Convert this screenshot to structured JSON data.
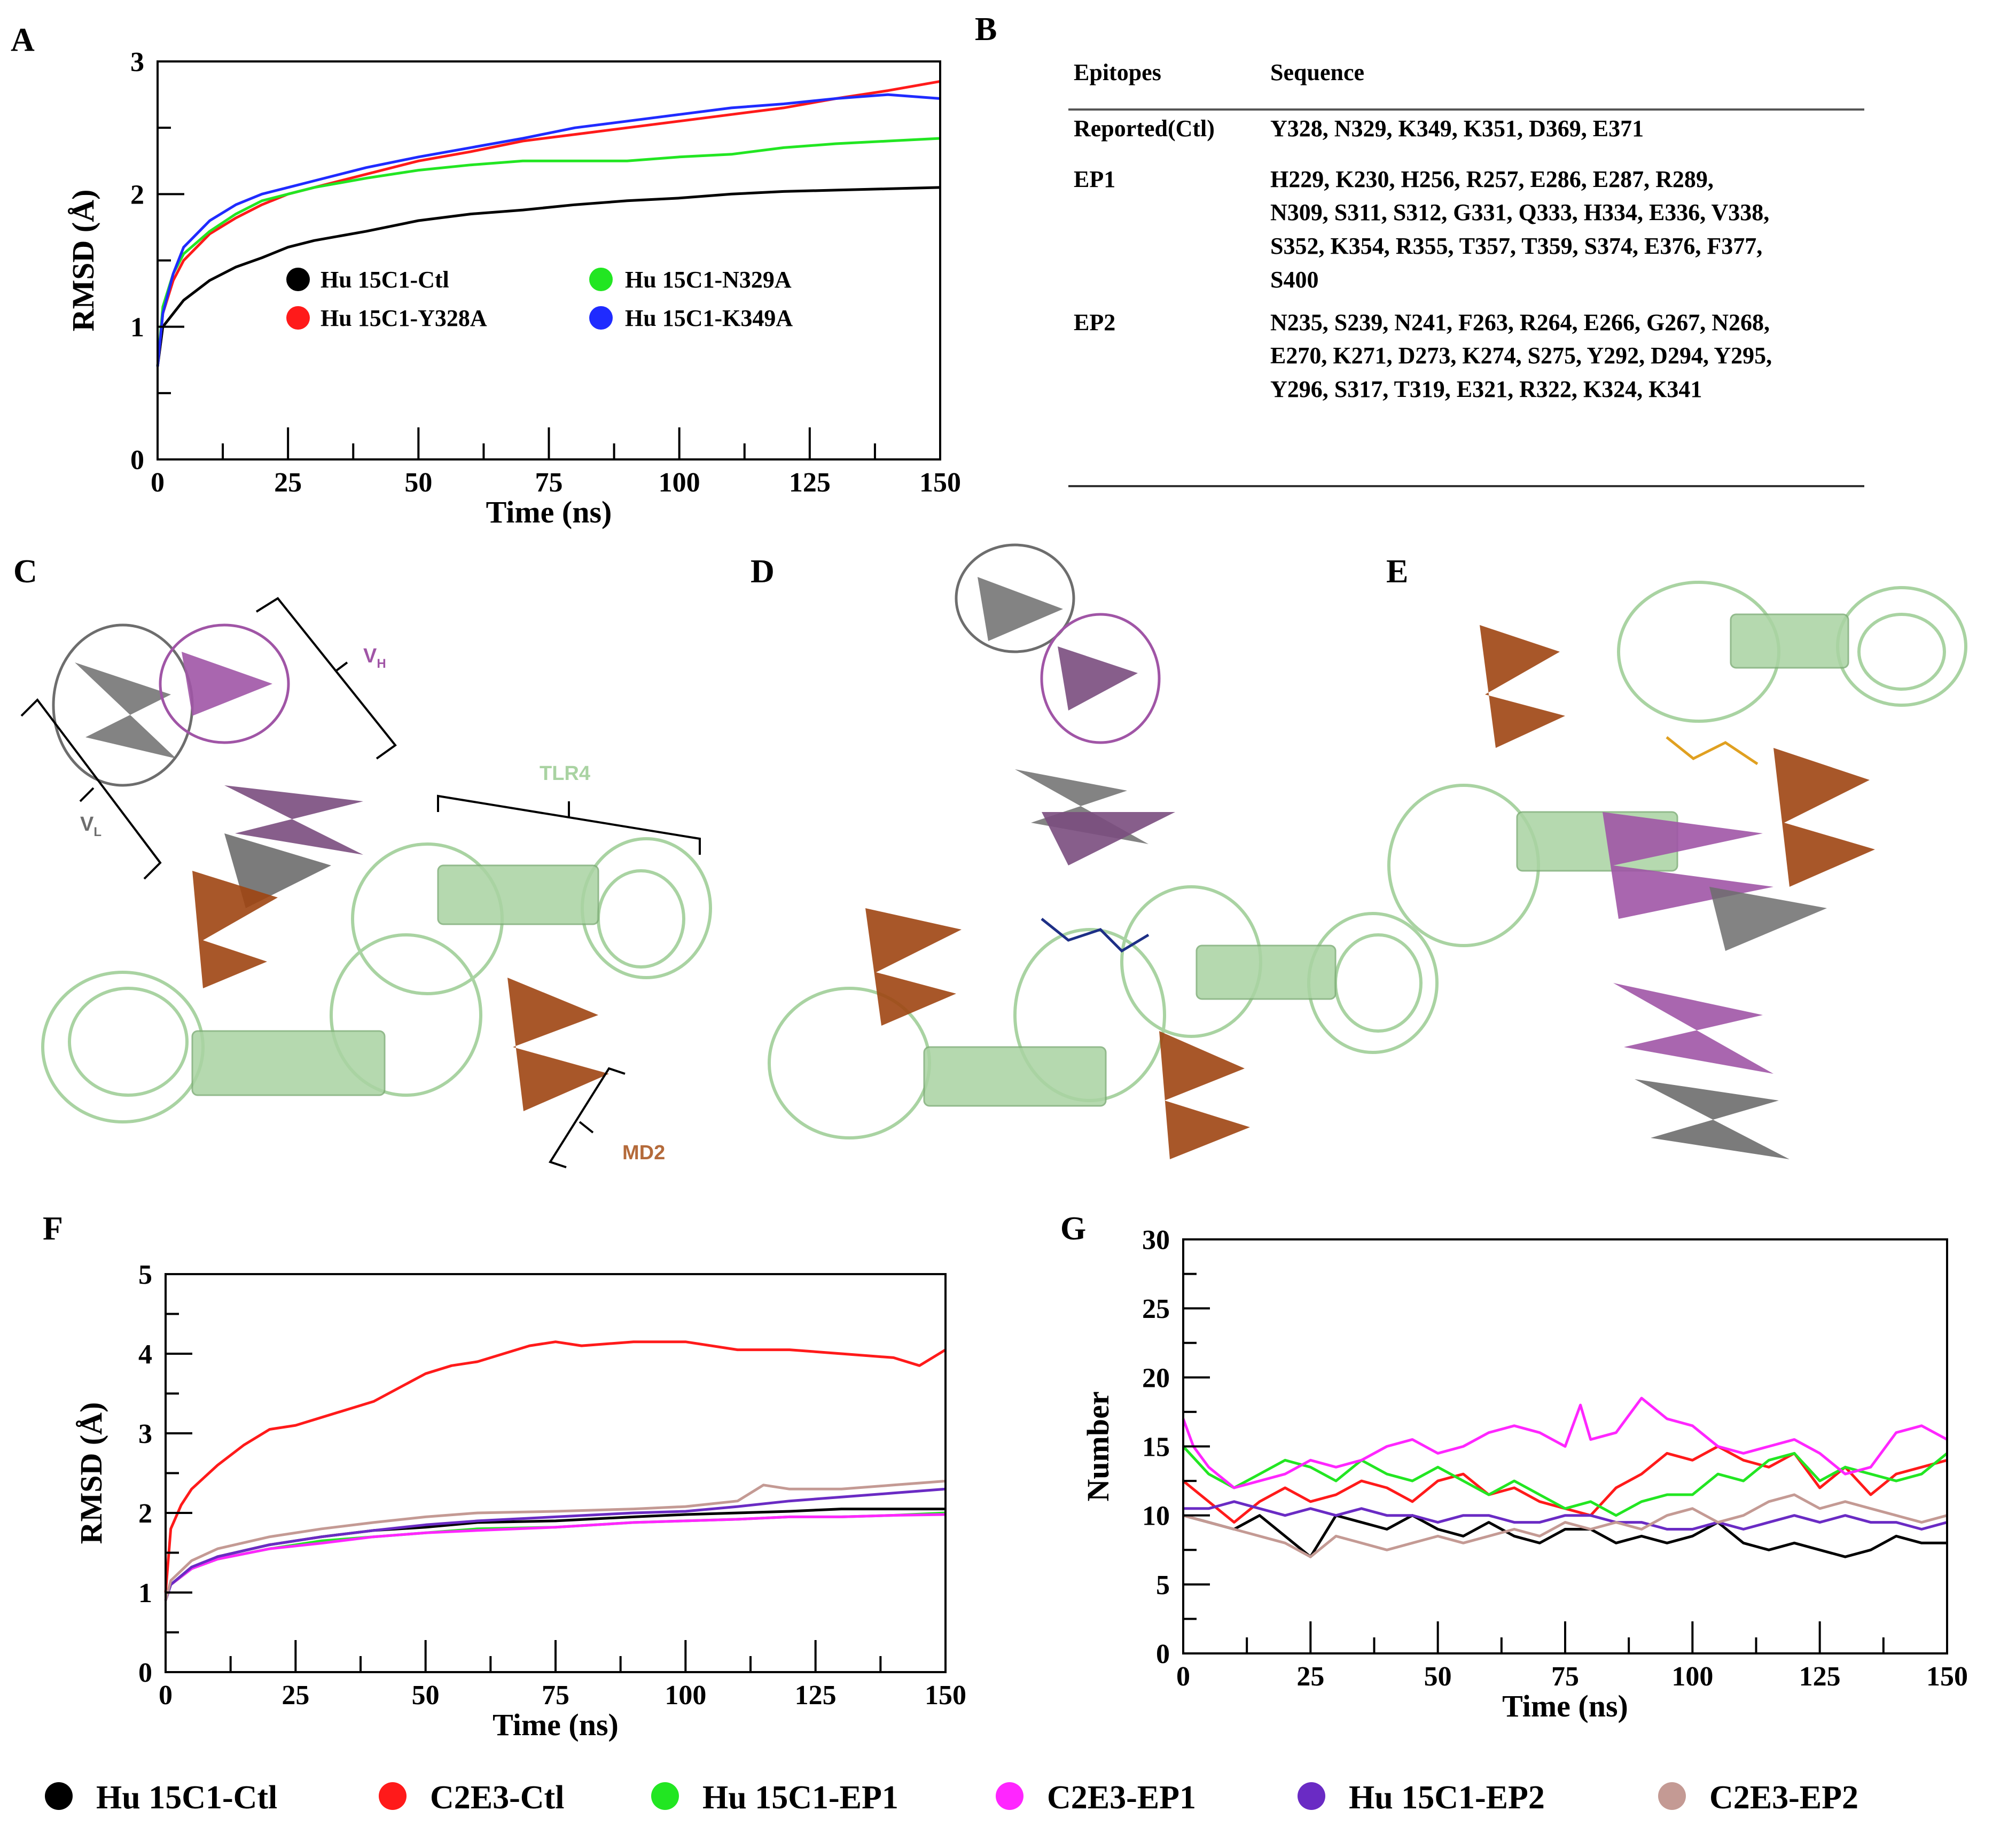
{
  "panels": {
    "A": "A",
    "B": "B",
    "C": "C",
    "D": "D",
    "E": "E",
    "F": "F",
    "G": "G"
  },
  "colors": {
    "black": "#000000",
    "red": "#ff1a1a",
    "green": "#22e622",
    "blue": "#1f2bff",
    "magenta": "#ff26ff",
    "purple": "#6a2bc4",
    "tan": "#c49a94",
    "tlr4": "#a9d3a2",
    "md2": "#9e4512",
    "vh": "#a055a6",
    "vl": "#6d6d6d"
  },
  "tableB": {
    "headers": [
      "Epitopes",
      "Sequence"
    ],
    "rows": [
      {
        "epitope": "Reported(Ctl)",
        "lines": [
          "Y328, N329, K349, K351, D369, E371"
        ]
      },
      {
        "epitope": "EP1",
        "lines": [
          "H229, K230, H256, R257, E286, E287, R289,",
          "N309, S311, S312, G331, Q333, H334, E336, V338,",
          "S352, K354, R355, T357, T359, S374, E376, F377,",
          "S400"
        ]
      },
      {
        "epitope": "EP2",
        "lines": [
          "N235, S239, N241, F263, R264, E266, G267, N268,",
          "E270, K271, D273, K274, S275, Y292, D294, Y295,",
          "Y296, S317, T319, E321, R322, K324, K341"
        ]
      }
    ]
  },
  "structures": {
    "C": {
      "vh_label": "V",
      "vh_sub": "H",
      "vl_label": "V",
      "vl_sub": "L",
      "tlr4_label": "TLR4",
      "md2_label": "MD2"
    }
  },
  "chart_data": [
    {
      "id": "A",
      "type": "line",
      "xlabel": "Time (ns)",
      "ylabel": "RMSD (Å)",
      "xlim": [
        0,
        150
      ],
      "ylim": [
        0,
        3
      ],
      "xticks": [
        0,
        25,
        50,
        75,
        100,
        125,
        150
      ],
      "yticks": [
        0,
        1,
        2,
        3
      ],
      "legend_position": "lower-center",
      "series": [
        {
          "name": "Hu 15C1-Ctl",
          "color": "#000000",
          "x": [
            0,
            1,
            3,
            5,
            10,
            15,
            20,
            25,
            30,
            40,
            50,
            60,
            70,
            80,
            90,
            100,
            110,
            120,
            130,
            140,
            150
          ],
          "y": [
            0.7,
            1.0,
            1.1,
            1.2,
            1.35,
            1.45,
            1.52,
            1.6,
            1.65,
            1.72,
            1.8,
            1.85,
            1.88,
            1.92,
            1.95,
            1.97,
            2.0,
            2.02,
            2.03,
            2.04,
            2.05
          ]
        },
        {
          "name": "Hu 15C1-Y328A",
          "color": "#ff1a1a",
          "x": [
            0,
            1,
            3,
            5,
            10,
            15,
            20,
            25,
            30,
            40,
            50,
            60,
            70,
            80,
            90,
            100,
            110,
            120,
            130,
            140,
            150
          ],
          "y": [
            0.7,
            1.1,
            1.35,
            1.5,
            1.7,
            1.82,
            1.92,
            2.0,
            2.05,
            2.15,
            2.25,
            2.32,
            2.4,
            2.45,
            2.5,
            2.55,
            2.6,
            2.65,
            2.72,
            2.78,
            2.85
          ]
        },
        {
          "name": "Hu 15C1-N329A",
          "color": "#22e622",
          "x": [
            0,
            1,
            3,
            5,
            10,
            15,
            20,
            25,
            30,
            40,
            50,
            60,
            70,
            80,
            90,
            100,
            110,
            120,
            130,
            140,
            150
          ],
          "y": [
            0.7,
            1.15,
            1.4,
            1.55,
            1.72,
            1.85,
            1.95,
            2.0,
            2.05,
            2.12,
            2.18,
            2.22,
            2.25,
            2.25,
            2.25,
            2.28,
            2.3,
            2.35,
            2.38,
            2.4,
            2.42
          ]
        },
        {
          "name": "Hu 15C1-K349A",
          "color": "#1f2bff",
          "x": [
            0,
            1,
            3,
            5,
            10,
            15,
            20,
            25,
            30,
            40,
            50,
            60,
            70,
            80,
            90,
            100,
            110,
            120,
            130,
            140,
            150
          ],
          "y": [
            0.7,
            1.1,
            1.4,
            1.6,
            1.8,
            1.92,
            2.0,
            2.05,
            2.1,
            2.2,
            2.28,
            2.35,
            2.42,
            2.5,
            2.55,
            2.6,
            2.65,
            2.68,
            2.72,
            2.75,
            2.72
          ]
        }
      ]
    },
    {
      "id": "F",
      "type": "line",
      "xlabel": "Time (ns)",
      "ylabel": "RMSD (Å)",
      "xlim": [
        0,
        150
      ],
      "ylim": [
        0,
        5
      ],
      "xticks": [
        0,
        25,
        50,
        75,
        100,
        125,
        150
      ],
      "yticks": [
        0,
        1,
        2,
        3,
        4,
        5
      ],
      "series": [
        {
          "name": "Hu 15C1-Ctl",
          "color": "#000000",
          "x": [
            0,
            1,
            5,
            10,
            20,
            30,
            40,
            50,
            60,
            75,
            90,
            100,
            110,
            120,
            130,
            140,
            150
          ],
          "y": [
            0.9,
            1.1,
            1.3,
            1.45,
            1.6,
            1.7,
            1.78,
            1.82,
            1.88,
            1.9,
            1.95,
            1.98,
            2.0,
            2.02,
            2.05,
            2.05,
            2.05
          ]
        },
        {
          "name": "C2E3-Ctl",
          "color": "#ff1a1a",
          "x": [
            0,
            1,
            3,
            5,
            10,
            15,
            20,
            25,
            30,
            40,
            50,
            55,
            60,
            70,
            75,
            80,
            90,
            100,
            110,
            120,
            130,
            140,
            145,
            150
          ],
          "y": [
            1.0,
            1.8,
            2.1,
            2.3,
            2.6,
            2.85,
            3.05,
            3.1,
            3.2,
            3.4,
            3.75,
            3.85,
            3.9,
            4.1,
            4.15,
            4.1,
            4.15,
            4.15,
            4.05,
            4.05,
            4.0,
            3.95,
            3.85,
            4.05
          ]
        },
        {
          "name": "Hu 15C1-EP1",
          "color": "#22e622",
          "x": [
            0,
            1,
            5,
            10,
            20,
            30,
            40,
            50,
            60,
            75,
            90,
            100,
            110,
            120,
            130,
            140,
            150
          ],
          "y": [
            0.9,
            1.1,
            1.3,
            1.42,
            1.55,
            1.65,
            1.7,
            1.75,
            1.8,
            1.82,
            1.88,
            1.9,
            1.92,
            1.95,
            1.95,
            1.97,
            2.0
          ]
        },
        {
          "name": "C2E3-EP1",
          "color": "#ff26ff",
          "x": [
            0,
            1,
            5,
            10,
            20,
            30,
            40,
            50,
            60,
            75,
            90,
            100,
            110,
            120,
            130,
            140,
            150
          ],
          "y": [
            0.9,
            1.1,
            1.3,
            1.42,
            1.55,
            1.62,
            1.7,
            1.75,
            1.78,
            1.82,
            1.88,
            1.9,
            1.92,
            1.95,
            1.95,
            1.97,
            1.98
          ]
        },
        {
          "name": "Hu 15C1-EP2",
          "color": "#6a2bc4",
          "x": [
            0,
            1,
            5,
            10,
            20,
            30,
            40,
            50,
            60,
            75,
            90,
            100,
            110,
            120,
            130,
            140,
            150
          ],
          "y": [
            0.9,
            1.1,
            1.32,
            1.45,
            1.6,
            1.7,
            1.78,
            1.85,
            1.9,
            1.95,
            2.0,
            2.02,
            2.08,
            2.15,
            2.2,
            2.25,
            2.3
          ]
        },
        {
          "name": "C2E3-EP2",
          "color": "#c49a94",
          "x": [
            0,
            1,
            5,
            10,
            20,
            30,
            40,
            50,
            60,
            75,
            90,
            100,
            110,
            115,
            120,
            130,
            140,
            150
          ],
          "y": [
            0.9,
            1.15,
            1.4,
            1.55,
            1.7,
            1.8,
            1.88,
            1.95,
            2.0,
            2.02,
            2.05,
            2.08,
            2.15,
            2.35,
            2.3,
            2.3,
            2.35,
            2.4
          ]
        }
      ]
    },
    {
      "id": "G",
      "type": "line",
      "xlabel": "Time (ns)",
      "ylabel": "Number",
      "xlim": [
        0,
        150
      ],
      "ylim": [
        0,
        30
      ],
      "xticks": [
        0,
        25,
        50,
        75,
        100,
        125,
        150
      ],
      "yticks": [
        0,
        5,
        10,
        15,
        20,
        25,
        30
      ],
      "series": [
        {
          "name": "Hu 15C1-Ctl",
          "color": "#000000",
          "x": [
            0,
            5,
            10,
            15,
            20,
            25,
            30,
            35,
            40,
            45,
            50,
            55,
            60,
            65,
            70,
            75,
            80,
            85,
            90,
            95,
            100,
            105,
            110,
            115,
            120,
            125,
            130,
            135,
            140,
            145,
            150
          ],
          "y": [
            10,
            9.5,
            9,
            10,
            8.5,
            7,
            10,
            9.5,
            9,
            10,
            9,
            8.5,
            9.5,
            8.5,
            8,
            9,
            9,
            8,
            8.5,
            8,
            8.5,
            9.5,
            8,
            7.5,
            8,
            7.5,
            7,
            7.5,
            8.5,
            8,
            8
          ]
        },
        {
          "name": "C2E3-Ctl",
          "color": "#ff1a1a",
          "x": [
            0,
            5,
            10,
            15,
            20,
            25,
            30,
            35,
            40,
            45,
            50,
            55,
            60,
            65,
            70,
            75,
            80,
            85,
            90,
            95,
            100,
            105,
            110,
            115,
            120,
            125,
            130,
            135,
            140,
            145,
            150
          ],
          "y": [
            12.5,
            11,
            9.5,
            11,
            12,
            11,
            11.5,
            12.5,
            12,
            11,
            12.5,
            13,
            11.5,
            12,
            11,
            10.5,
            10,
            12,
            13,
            14.5,
            14,
            15,
            14,
            13.5,
            14.5,
            12,
            13.5,
            11.5,
            13,
            13.5,
            14
          ]
        },
        {
          "name": "Hu 15C1-EP1",
          "color": "#22e622",
          "x": [
            0,
            5,
            10,
            15,
            20,
            25,
            30,
            35,
            40,
            45,
            50,
            55,
            60,
            65,
            70,
            75,
            80,
            85,
            90,
            95,
            100,
            105,
            110,
            115,
            120,
            125,
            130,
            135,
            140,
            145,
            150
          ],
          "y": [
            15,
            13,
            12,
            13,
            14,
            13.5,
            12.5,
            14,
            13,
            12.5,
            13.5,
            12.5,
            11.5,
            12.5,
            11.5,
            10.5,
            11,
            10,
            11,
            11.5,
            11.5,
            13,
            12.5,
            14,
            14.5,
            12.5,
            13.5,
            13,
            12.5,
            13,
            14.5
          ]
        },
        {
          "name": "C2E3-EP1",
          "color": "#ff26ff",
          "x": [
            0,
            2,
            5,
            10,
            15,
            20,
            25,
            30,
            35,
            40,
            45,
            50,
            55,
            60,
            65,
            70,
            75,
            78,
            80,
            85,
            90,
            95,
            100,
            105,
            110,
            115,
            120,
            125,
            130,
            135,
            140,
            145,
            150
          ],
          "y": [
            17,
            15,
            13.5,
            12,
            12.5,
            13,
            14,
            13.5,
            14,
            15,
            15.5,
            14.5,
            15,
            16,
            16.5,
            16,
            15,
            18,
            15.5,
            16,
            18.5,
            17,
            16.5,
            15,
            14.5,
            15,
            15.5,
            14.5,
            13,
            13.5,
            16,
            16.5,
            15.5
          ]
        },
        {
          "name": "Hu 15C1-EP2",
          "color": "#6a2bc4",
          "x": [
            0,
            5,
            10,
            15,
            20,
            25,
            30,
            35,
            40,
            45,
            50,
            55,
            60,
            65,
            70,
            75,
            80,
            85,
            90,
            95,
            100,
            105,
            110,
            115,
            120,
            125,
            130,
            135,
            140,
            145,
            150
          ],
          "y": [
            10.5,
            10.5,
            11,
            10.5,
            10,
            10.5,
            10,
            10.5,
            10,
            10,
            9.5,
            10,
            10,
            9.5,
            9.5,
            10,
            10,
            9.5,
            9.5,
            9,
            9,
            9.5,
            9,
            9.5,
            10,
            9.5,
            10,
            9.5,
            9.5,
            9,
            9.5
          ]
        },
        {
          "name": "C2E3-EP2",
          "color": "#c49a94",
          "x": [
            0,
            5,
            10,
            15,
            20,
            25,
            30,
            35,
            40,
            45,
            50,
            55,
            60,
            65,
            70,
            75,
            80,
            85,
            90,
            95,
            100,
            105,
            110,
            115,
            120,
            125,
            130,
            135,
            140,
            145,
            150
          ],
          "y": [
            10,
            9.5,
            9,
            8.5,
            8,
            7,
            8.5,
            8,
            7.5,
            8,
            8.5,
            8,
            8.5,
            9,
            8.5,
            9.5,
            9,
            9.5,
            9,
            10,
            10.5,
            9.5,
            10,
            11,
            11.5,
            10.5,
            11,
            10.5,
            10,
            9.5,
            10
          ]
        }
      ]
    }
  ],
  "legendA": [
    "Hu 15C1-Ctl",
    "Hu 15C1-N329A",
    "Hu 15C1-Y328A",
    "Hu 15C1-K349A"
  ],
  "legendBottom": [
    "Hu 15C1-Ctl",
    "C2E3-Ctl",
    "Hu 15C1-EP1",
    "C2E3-EP1",
    "Hu 15C1-EP2",
    "C2E3-EP2"
  ]
}
